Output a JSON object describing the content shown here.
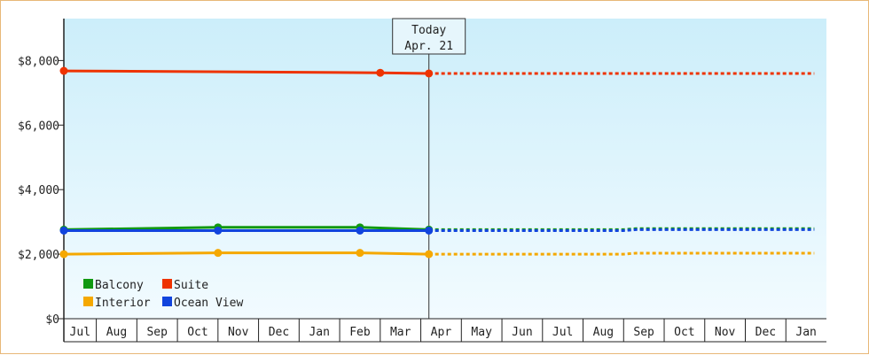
{
  "chart_data": {
    "type": "line",
    "y_ticks": [
      {
        "value": 0,
        "label": "$0"
      },
      {
        "value": 2000,
        "label": "$2,000"
      },
      {
        "value": 4000,
        "label": "$4,000"
      },
      {
        "value": 6000,
        "label": "$6,000"
      },
      {
        "value": 8000,
        "label": "$8,000"
      }
    ],
    "ylim": [
      0,
      9300
    ],
    "months": [
      "Jul",
      "Aug",
      "Sep",
      "Oct",
      "Nov",
      "Dec",
      "Jan",
      "Feb",
      "Mar",
      "Apr",
      "May",
      "Jun",
      "Jul",
      "Aug",
      "Sep",
      "Oct",
      "Nov",
      "Dec",
      "Jan"
    ],
    "today": {
      "line1": "Today",
      "line2": "Apr. 21",
      "month_position": 9.2
    },
    "series": [
      {
        "name": "Suite",
        "color": "#ee3300",
        "actual": [
          [
            0,
            7680
          ],
          [
            8,
            7620
          ],
          [
            9.2,
            7600
          ]
        ],
        "markers": [
          [
            0,
            7680
          ],
          [
            8,
            7620
          ],
          [
            9.2,
            7600
          ]
        ],
        "projected": [
          [
            9.2,
            7600
          ],
          [
            18.7,
            7600
          ]
        ]
      },
      {
        "name": "Balcony",
        "color": "#119911",
        "actual": [
          [
            0,
            2760
          ],
          [
            4,
            2830
          ],
          [
            7.5,
            2830
          ],
          [
            9.2,
            2760
          ]
        ],
        "markers": [
          [
            0,
            2760
          ],
          [
            4,
            2830
          ],
          [
            7.5,
            2830
          ],
          [
            9.2,
            2760
          ]
        ],
        "projected": [
          [
            9.2,
            2760
          ],
          [
            14,
            2760
          ],
          [
            14.3,
            2790
          ],
          [
            18.7,
            2790
          ]
        ]
      },
      {
        "name": "Ocean View",
        "color": "#1144dd",
        "actual": [
          [
            0,
            2730
          ],
          [
            4,
            2730
          ],
          [
            7.5,
            2730
          ],
          [
            9.2,
            2730
          ]
        ],
        "markers": [
          [
            0,
            2730
          ],
          [
            4,
            2730
          ],
          [
            7.5,
            2730
          ],
          [
            9.2,
            2730
          ]
        ],
        "projected": [
          [
            9.2,
            2730
          ],
          [
            14,
            2730
          ],
          [
            14.3,
            2760
          ],
          [
            18.7,
            2760
          ]
        ]
      },
      {
        "name": "Interior",
        "color": "#f5a800",
        "actual": [
          [
            0,
            2000
          ],
          [
            4,
            2040
          ],
          [
            7.5,
            2040
          ],
          [
            9.2,
            2000
          ]
        ],
        "markers": [
          [
            0,
            2000
          ],
          [
            4,
            2040
          ],
          [
            7.5,
            2040
          ],
          [
            9.2,
            2000
          ]
        ],
        "projected": [
          [
            9.2,
            2000
          ],
          [
            14,
            2000
          ],
          [
            14.3,
            2030
          ],
          [
            18.7,
            2030
          ]
        ]
      }
    ],
    "legend": {
      "placement": "bottom-left",
      "items": [
        {
          "name": "Balcony",
          "color": "#119911"
        },
        {
          "name": "Suite",
          "color": "#ee3300"
        },
        {
          "name": "Interior",
          "color": "#f5a800"
        },
        {
          "name": "Ocean View",
          "color": "#1144dd"
        }
      ]
    },
    "colors": {
      "plot_top": "#cceefa",
      "plot_bottom": "#f2fbff",
      "frame_border": "#e8b878",
      "axis": "#222222"
    }
  }
}
